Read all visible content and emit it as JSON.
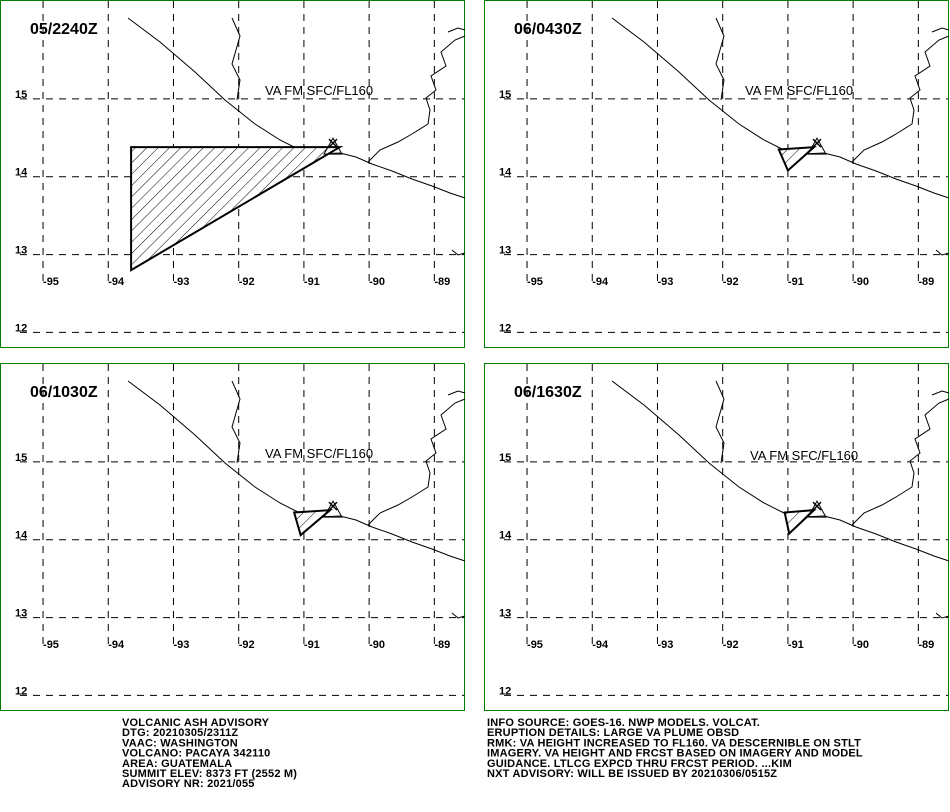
{
  "map": {
    "xlim": [
      -95.66,
      -88.53
    ],
    "ylim": [
      11.8,
      16.27
    ],
    "xticks": [
      -95,
      -94,
      -93,
      -92,
      -91,
      -90,
      -89
    ],
    "yticks": [
      12,
      13,
      14,
      15
    ]
  },
  "panels": [
    {
      "time": "05/2240Z",
      "label": "VA FM SFC/FL160",
      "area": [
        [
          -93.65,
          14.38
        ],
        [
          -90.45,
          14.38
        ],
        [
          -93.65,
          12.8
        ]
      ]
    },
    {
      "time": "06/0430Z",
      "label": "VA FM SFC/FL160",
      "area": [
        [
          -91.14,
          14.35
        ],
        [
          -90.6,
          14.38
        ],
        [
          -91.0,
          14.08
        ]
      ]
    },
    {
      "time": "06/1030Z",
      "label": "VA FM SFC/FL160",
      "area": [
        [
          -91.15,
          14.35
        ],
        [
          -90.6,
          14.38
        ],
        [
          -91.05,
          14.06
        ]
      ]
    },
    {
      "time": "06/1630Z",
      "label": "VA FM SFC/FL160",
      "area": [
        [
          -91.05,
          14.35
        ],
        [
          -90.6,
          14.38
        ],
        [
          -90.98,
          14.08
        ]
      ]
    }
  ],
  "advisory_left": [
    "VOLCANIC ASH ADVISORY",
    "DTG: 20210305/2311Z",
    "VAAC: WASHINGTON",
    "VOLCANO: PACAYA 342110",
    "AREA: GUATEMALA",
    "SUMMIT ELEV: 8373 FT (2552 M)",
    "ADVISORY NR: 2021/055"
  ],
  "advisory_right": [
    "INFO SOURCE: GOES-16. NWP MODELS. VOLCAT.",
    "ERUPTION DETAILS: LARGE VA PLUME OBSD",
    "RMK: VA HEIGHT INCREASED TO FL160. VA DESCERNIBLE ON STLT",
    "IMAGERY. VA HEIGHT AND FRCST BASED ON IMAGERY AND MODEL",
    "GUIDANCE. LTLCG EXPCD THRU FRCST PERIOD. ...KIM",
    "NXT ADVISORY: WILL BE ISSUED BY 20210306/0515Z"
  ]
}
